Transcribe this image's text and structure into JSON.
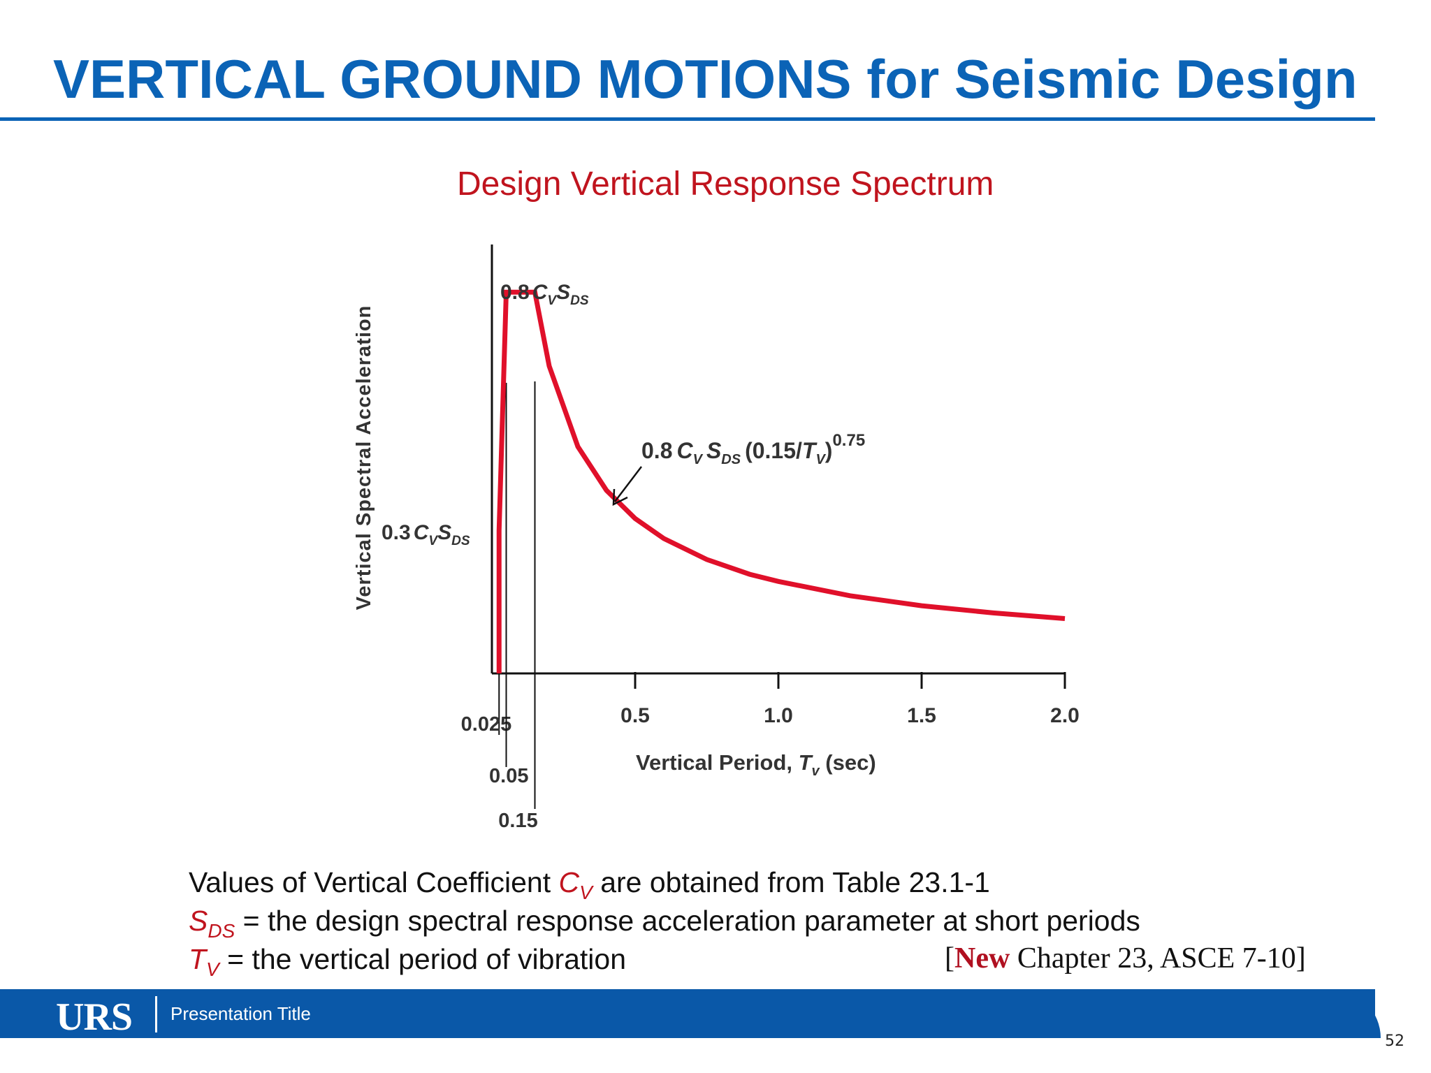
{
  "slide": {
    "title": "VERTICAL GROUND MOTIONS for Seismic Design",
    "footer_logo": "URS",
    "footer_text": "Presentation Title",
    "page_number": "52"
  },
  "colors": {
    "title_blue": "#0b63b6",
    "curve_red": "#e0102a",
    "label_red": "#c0141e",
    "footer_blue": "#0a58a8"
  },
  "chart_data": {
    "type": "line",
    "title": "Design Vertical Response Spectrum",
    "xlabel_prefix": "Vertical Period, ",
    "xlabel_var": "T",
    "xlabel_sub": "v",
    "xlabel_suffix": " (sec)",
    "ylabel": "Vertical Spectral Acceleration",
    "xlim": [
      0,
      2.0
    ],
    "x_ticks": [
      "0.5",
      "1.0",
      "1.5",
      "2.0"
    ],
    "x_tick_values": [
      0.5,
      1.0,
      1.5,
      2.0
    ],
    "marker_ticks": [
      {
        "value": 0.025,
        "label": "0.025"
      },
      {
        "value": 0.05,
        "label": "0.05"
      },
      {
        "value": 0.15,
        "label": "0.15"
      }
    ],
    "ylim": [
      0,
      0.9
    ],
    "series": [
      {
        "points": [
          {
            "x": 0.025,
            "y": 0.3
          },
          {
            "x": 0.05,
            "y": 0.8
          },
          {
            "x": 0.15,
            "y": 0.8
          },
          {
            "x": 0.2,
            "y": 0.645
          },
          {
            "x": 0.3,
            "y": 0.476
          },
          {
            "x": 0.4,
            "y": 0.384
          },
          {
            "x": 0.5,
            "y": 0.325
          },
          {
            "x": 0.6,
            "y": 0.283
          },
          {
            "x": 0.75,
            "y": 0.239
          },
          {
            "x": 0.9,
            "y": 0.208
          },
          {
            "x": 1.0,
            "y": 0.193
          },
          {
            "x": 1.25,
            "y": 0.163
          },
          {
            "x": 1.5,
            "y": 0.142
          },
          {
            "x": 1.75,
            "y": 0.127
          },
          {
            "x": 2.0,
            "y": 0.115
          }
        ]
      }
    ],
    "annotations": {
      "plateau": {
        "prefix": "0.8",
        "var1": "C",
        "sub1": "V",
        "var2": "S",
        "sub2": "DS"
      },
      "start": {
        "prefix": "0.3",
        "var1": "C",
        "sub1": "V",
        "var2": "S",
        "sub2": "DS"
      },
      "decay": {
        "prefix": "0.8",
        "var1": "C",
        "sub1": "V",
        "var2": "S",
        "sub2": "DS",
        "paren_open": "(0.15/",
        "var3": "T",
        "sub3": "V",
        "paren_close": ")",
        "exponent": "0.75"
      }
    }
  },
  "notes": {
    "line1_prefix": "Values of Vertical Coefficient ",
    "line1_sym": "C",
    "line1_sub": "V",
    "line1_suffix": " are obtained from Table 23.1-1",
    "line2_sym": "S",
    "line2_sub": "DS",
    "line2_suffix": " = the design spectral response acceleration parameter at short periods",
    "line3_sym": "T",
    "line3_sub": "V",
    "line3_suffix": " = the vertical period of vibration"
  },
  "citation": {
    "open": "[",
    "new": "New",
    "rest": " Chapter 23, ASCE 7-10]"
  }
}
